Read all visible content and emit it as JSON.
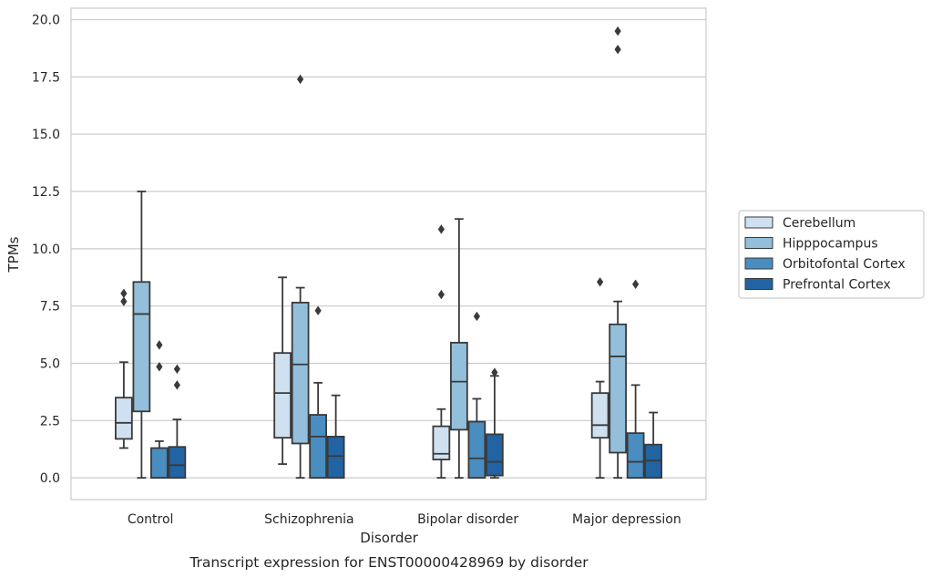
{
  "caption": "Transcript expression for ENST00000428969 by disorder",
  "colors": {
    "Cerebellum": "#cfe0f0",
    "Hipppocampus": "#93bfdb",
    "Orbitofontal Cortex": "#4a8dc0",
    "Prefrontal Cortex": "#2263a3",
    "edge": "#3a3a3a",
    "grid": "#cccccc",
    "frame": "#cccccc"
  },
  "chart_data": {
    "type": "box",
    "xlabel": "Disorder",
    "ylabel": "TPMs",
    "ylim": [
      -0.95,
      20.5
    ],
    "yticks": [
      "0.0",
      "2.5",
      "5.0",
      "7.5",
      "10.0",
      "12.5",
      "15.0",
      "17.5",
      "20.0"
    ],
    "categories": [
      "Control",
      "Schizophrenia",
      "Bipolar disorder",
      "Major depression"
    ],
    "grid": true,
    "legend_position": "right",
    "series": [
      {
        "name": "Cerebellum",
        "boxes": [
          {
            "min": 1.3,
            "q1": 1.7,
            "median": 2.4,
            "q3": 3.5,
            "max": 5.05,
            "outliers": [
              7.7,
              8.05
            ]
          },
          {
            "min": 0.6,
            "q1": 1.75,
            "median": 3.7,
            "q3": 5.45,
            "max": 8.75,
            "outliers": []
          },
          {
            "min": 0.0,
            "q1": 0.8,
            "median": 1.05,
            "q3": 2.25,
            "max": 3.0,
            "outliers": [
              8.0,
              10.85
            ]
          },
          {
            "min": 0.0,
            "q1": 1.75,
            "median": 2.3,
            "q3": 3.7,
            "max": 4.2,
            "outliers": [
              8.55
            ]
          }
        ]
      },
      {
        "name": "Hipppocampus",
        "boxes": [
          {
            "min": 0.0,
            "q1": 2.9,
            "median": 7.15,
            "q3": 8.55,
            "max": 12.5,
            "outliers": []
          },
          {
            "min": 0.0,
            "q1": 1.5,
            "median": 4.95,
            "q3": 7.65,
            "max": 8.3,
            "outliers": [
              17.4
            ]
          },
          {
            "min": 0.0,
            "q1": 2.1,
            "median": 4.2,
            "q3": 5.9,
            "max": 11.3,
            "outliers": []
          },
          {
            "min": 0.0,
            "q1": 1.1,
            "median": 5.3,
            "q3": 6.7,
            "max": 7.7,
            "outliers": [
              18.7,
              19.5
            ]
          }
        ]
      },
      {
        "name": "Orbitofontal Cortex",
        "boxes": [
          {
            "min": 0.0,
            "q1": 0.0,
            "median": 0.0,
            "q3": 1.3,
            "max": 1.6,
            "outliers": [
              4.85,
              5.8
            ]
          },
          {
            "min": 0.0,
            "q1": 0.0,
            "median": 1.8,
            "q3": 2.75,
            "max": 4.15,
            "outliers": [
              7.3
            ]
          },
          {
            "min": 0.0,
            "q1": 0.0,
            "median": 0.85,
            "q3": 2.45,
            "max": 3.45,
            "outliers": [
              7.05
            ]
          },
          {
            "min": 0.0,
            "q1": 0.0,
            "median": 0.7,
            "q3": 1.95,
            "max": 4.05,
            "outliers": [
              8.45
            ]
          }
        ]
      },
      {
        "name": "Prefrontal Cortex",
        "boxes": [
          {
            "min": 0.0,
            "q1": 0.0,
            "median": 0.55,
            "q3": 1.35,
            "max": 2.55,
            "outliers": [
              4.05,
              4.75
            ]
          },
          {
            "min": 0.0,
            "q1": 0.0,
            "median": 0.95,
            "q3": 1.8,
            "max": 3.6,
            "outliers": []
          },
          {
            "min": 0.0,
            "q1": 0.1,
            "median": 0.7,
            "q3": 1.9,
            "max": 4.45,
            "outliers": [
              4.6
            ]
          },
          {
            "min": 0.0,
            "q1": 0.0,
            "median": 0.75,
            "q3": 1.45,
            "max": 2.85,
            "outliers": []
          }
        ]
      }
    ]
  }
}
